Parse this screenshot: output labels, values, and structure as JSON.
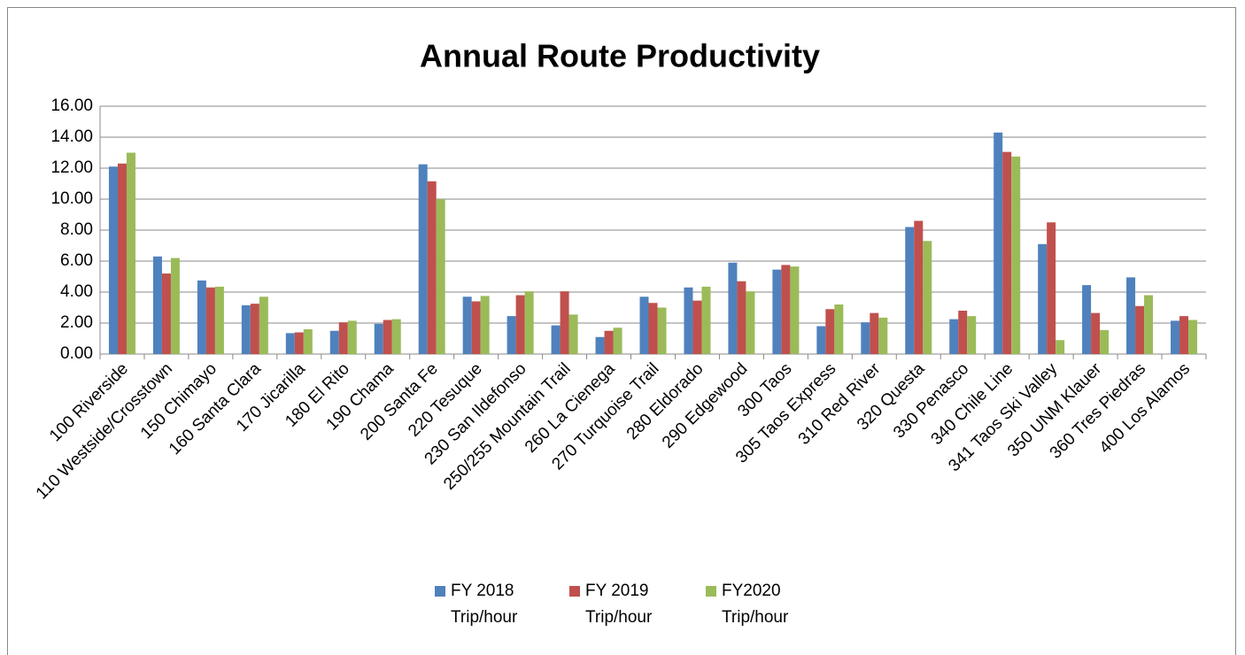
{
  "chart_data": {
    "type": "bar",
    "title": "Annual Route Productivity",
    "categories": [
      "100 Riverside",
      "110 Westside/Crosstown",
      "150 Chimayo",
      "160 Santa Clara",
      "170 Jicarilla",
      "180 El Rito",
      "190 Chama",
      "200 Santa Fe",
      "220 Tesuque",
      "230 San Ildefonso",
      "250/255 Mountain Trail",
      "260 La Cienega",
      "270 Turquoise Trail",
      "280 Eldorado",
      "290 Edgewood",
      "300 Taos",
      "305 Taos Express",
      "310 Red River",
      "320 Questa",
      "330 Penasco",
      "340 Chile Line",
      "341 Taos Ski Valley",
      "350 UNM Klauer",
      "360 Tres Piedras",
      "400 Los Alamos"
    ],
    "series": [
      {
        "name": "FY 2018 Trip/hour",
        "color": "#4f81bd",
        "values": [
          12.1,
          6.3,
          4.75,
          3.15,
          1.35,
          1.5,
          1.95,
          12.25,
          3.7,
          2.45,
          1.85,
          1.1,
          3.7,
          4.3,
          5.9,
          5.45,
          1.8,
          2.05,
          8.2,
          2.25,
          14.3,
          7.1,
          4.45,
          4.95,
          2.15
        ]
      },
      {
        "name": "FY 2019 Trip/hour",
        "color": "#c0504d",
        "values": [
          12.3,
          5.2,
          4.3,
          3.25,
          1.4,
          2.05,
          2.2,
          11.15,
          3.4,
          3.8,
          4.05,
          1.5,
          3.3,
          3.45,
          4.7,
          5.75,
          2.9,
          2.65,
          8.6,
          2.8,
          13.05,
          8.5,
          2.65,
          3.1,
          2.45
        ]
      },
      {
        "name": "FY2020 Trip/hour",
        "color": "#9bbb59",
        "values": [
          13.0,
          6.2,
          4.35,
          3.7,
          1.6,
          2.15,
          2.25,
          10.0,
          3.75,
          4.05,
          2.55,
          1.7,
          3.0,
          4.35,
          4.05,
          5.65,
          3.2,
          2.35,
          7.3,
          2.45,
          12.75,
          0.9,
          1.55,
          3.8,
          2.2
        ]
      }
    ],
    "ylim": [
      0,
      16
    ],
    "yticks": [
      {
        "value": 0,
        "label": "0.00"
      },
      {
        "value": 2,
        "label": "2.00"
      },
      {
        "value": 4,
        "label": "4.00"
      },
      {
        "value": 6,
        "label": "6.00"
      },
      {
        "value": 8,
        "label": "8.00"
      },
      {
        "value": 10,
        "label": "10.00"
      },
      {
        "value": 12,
        "label": "12.00"
      },
      {
        "value": 14,
        "label": "14.00"
      },
      {
        "value": 16,
        "label": "16.00"
      }
    ],
    "grid": true,
    "legend": "bottom"
  }
}
